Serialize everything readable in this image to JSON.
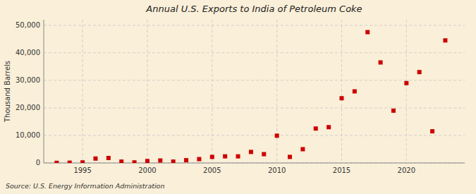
{
  "chart_data": {
    "type": "scatter",
    "title": "Annual U.S. Exports to India of Petroleum Coke",
    "y_label": "Thousand Barrels",
    "source": "Source: U.S. Energy Information Administration",
    "x": [
      1993,
      1994,
      1995,
      1996,
      1997,
      1998,
      1999,
      2000,
      2001,
      2002,
      2003,
      2004,
      2005,
      2006,
      2007,
      2008,
      2009,
      2010,
      2011,
      2012,
      2013,
      2014,
      2015,
      2016,
      2017,
      2018,
      2019,
      2020,
      2021,
      2022,
      2023
    ],
    "values": [
      50,
      100,
      200,
      1600,
      1800,
      500,
      200,
      700,
      900,
      500,
      1000,
      1400,
      2200,
      2400,
      2400,
      4000,
      3200,
      9900,
      2200,
      5000,
      12500,
      13000,
      23500,
      26000,
      47500,
      36500,
      19000,
      29000,
      33000,
      11500,
      44500
    ],
    "color": "#cc0000",
    "marker": "square",
    "xlim": [
      1992,
      2024.5
    ],
    "xticks": [
      1995,
      2000,
      2005,
      2010,
      2015,
      2020
    ],
    "ylim": [
      0,
      52000
    ],
    "yticks": [
      0,
      {
        "value": 10000,
        "label": "10,000"
      },
      {
        "value": 20000,
        "label": "20,000"
      },
      {
        "value": 30000,
        "label": "30,000"
      },
      {
        "value": 40000,
        "label": "40,000"
      },
      {
        "value": 50000,
        "label": "50,000"
      }
    ],
    "grid": true
  }
}
